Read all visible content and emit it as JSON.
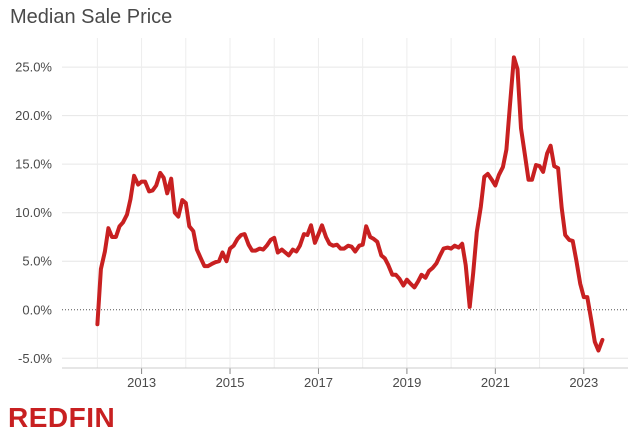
{
  "brand": {
    "logo_text": "REDFIN",
    "color": "#c82021"
  },
  "chart_data": {
    "type": "line",
    "title": "Median Sale Price",
    "xlabel": "",
    "ylabel": "",
    "x_ticks": [
      2013,
      2015,
      2017,
      2019,
      2021,
      2023
    ],
    "y_ticks": [
      -5,
      0,
      5,
      10,
      15,
      20,
      25
    ],
    "y_tick_labels": [
      "-5.0%",
      "0.0%",
      "5.0%",
      "10.0%",
      "15.0%",
      "20.0%",
      "25.0%"
    ],
    "xlim": [
      2011.2,
      2024.0
    ],
    "ylim": [
      -6.0,
      28.0
    ],
    "grid": true,
    "zero_line": "dotted",
    "line_color": "#c82021",
    "series": [
      {
        "values": [
          [
            2012.0,
            -1.5
          ],
          [
            2012.08,
            4.2
          ],
          [
            2012.17,
            6.0
          ],
          [
            2012.25,
            8.4
          ],
          [
            2012.33,
            7.5
          ],
          [
            2012.42,
            7.5
          ],
          [
            2012.5,
            8.6
          ],
          [
            2012.58,
            9.0
          ],
          [
            2012.67,
            9.8
          ],
          [
            2012.75,
            11.4
          ],
          [
            2012.83,
            13.8
          ],
          [
            2012.92,
            12.9
          ],
          [
            2013.0,
            13.2
          ],
          [
            2013.08,
            13.2
          ],
          [
            2013.17,
            12.2
          ],
          [
            2013.25,
            12.3
          ],
          [
            2013.33,
            12.8
          ],
          [
            2013.42,
            14.1
          ],
          [
            2013.5,
            13.6
          ],
          [
            2013.58,
            12.0
          ],
          [
            2013.67,
            13.5
          ],
          [
            2013.75,
            10.0
          ],
          [
            2013.83,
            9.6
          ],
          [
            2013.92,
            11.3
          ],
          [
            2014.0,
            11.0
          ],
          [
            2014.08,
            8.6
          ],
          [
            2014.17,
            8.1
          ],
          [
            2014.25,
            6.2
          ],
          [
            2014.33,
            5.4
          ],
          [
            2014.42,
            4.5
          ],
          [
            2014.5,
            4.5
          ],
          [
            2014.58,
            4.7
          ],
          [
            2014.67,
            4.9
          ],
          [
            2014.75,
            5.0
          ],
          [
            2014.83,
            5.9
          ],
          [
            2014.92,
            5.0
          ],
          [
            2015.0,
            6.3
          ],
          [
            2015.08,
            6.6
          ],
          [
            2015.17,
            7.3
          ],
          [
            2015.25,
            7.7
          ],
          [
            2015.33,
            7.8
          ],
          [
            2015.42,
            6.7
          ],
          [
            2015.5,
            6.1
          ],
          [
            2015.58,
            6.1
          ],
          [
            2015.67,
            6.3
          ],
          [
            2015.75,
            6.2
          ],
          [
            2015.83,
            6.6
          ],
          [
            2015.92,
            7.2
          ],
          [
            2016.0,
            7.4
          ],
          [
            2016.08,
            5.9
          ],
          [
            2016.17,
            6.2
          ],
          [
            2016.25,
            5.9
          ],
          [
            2016.33,
            5.6
          ],
          [
            2016.42,
            6.2
          ],
          [
            2016.5,
            6.0
          ],
          [
            2016.58,
            6.6
          ],
          [
            2016.67,
            7.8
          ],
          [
            2016.75,
            7.7
          ],
          [
            2016.83,
            8.7
          ],
          [
            2016.92,
            6.9
          ],
          [
            2017.0,
            7.8
          ],
          [
            2017.08,
            8.7
          ],
          [
            2017.17,
            7.5
          ],
          [
            2017.25,
            6.8
          ],
          [
            2017.33,
            6.6
          ],
          [
            2017.42,
            6.7
          ],
          [
            2017.5,
            6.3
          ],
          [
            2017.58,
            6.3
          ],
          [
            2017.67,
            6.6
          ],
          [
            2017.75,
            6.5
          ],
          [
            2017.83,
            6.0
          ],
          [
            2017.92,
            6.6
          ],
          [
            2018.0,
            6.7
          ],
          [
            2018.08,
            8.6
          ],
          [
            2018.17,
            7.5
          ],
          [
            2018.25,
            7.3
          ],
          [
            2018.33,
            7.0
          ],
          [
            2018.42,
            5.6
          ],
          [
            2018.5,
            5.3
          ],
          [
            2018.58,
            4.6
          ],
          [
            2018.67,
            3.6
          ],
          [
            2018.75,
            3.6
          ],
          [
            2018.83,
            3.2
          ],
          [
            2018.92,
            2.5
          ],
          [
            2019.0,
            3.1
          ],
          [
            2019.08,
            2.7
          ],
          [
            2019.17,
            2.3
          ],
          [
            2019.25,
            2.9
          ],
          [
            2019.33,
            3.6
          ],
          [
            2019.42,
            3.3
          ],
          [
            2019.5,
            4.0
          ],
          [
            2019.58,
            4.3
          ],
          [
            2019.67,
            4.8
          ],
          [
            2019.75,
            5.6
          ],
          [
            2019.83,
            6.3
          ],
          [
            2019.92,
            6.4
          ],
          [
            2020.0,
            6.3
          ],
          [
            2020.08,
            6.6
          ],
          [
            2020.17,
            6.4
          ],
          [
            2020.25,
            6.8
          ],
          [
            2020.33,
            4.6
          ],
          [
            2020.42,
            0.3
          ],
          [
            2020.5,
            3.8
          ],
          [
            2020.58,
            8.0
          ],
          [
            2020.67,
            10.6
          ],
          [
            2020.75,
            13.7
          ],
          [
            2020.83,
            14.0
          ],
          [
            2020.92,
            13.4
          ],
          [
            2021.0,
            12.8
          ],
          [
            2021.08,
            13.9
          ],
          [
            2021.17,
            14.7
          ],
          [
            2021.25,
            16.5
          ],
          [
            2021.33,
            21.0
          ],
          [
            2021.42,
            26.0
          ],
          [
            2021.5,
            24.8
          ],
          [
            2021.58,
            18.7
          ],
          [
            2021.67,
            15.9
          ],
          [
            2021.75,
            13.4
          ],
          [
            2021.83,
            13.4
          ],
          [
            2021.92,
            14.9
          ],
          [
            2022.0,
            14.8
          ],
          [
            2022.08,
            14.2
          ],
          [
            2022.17,
            16.1
          ],
          [
            2022.25,
            16.9
          ],
          [
            2022.33,
            14.8
          ],
          [
            2022.42,
            14.6
          ],
          [
            2022.5,
            10.5
          ],
          [
            2022.58,
            7.7
          ],
          [
            2022.67,
            7.2
          ],
          [
            2022.75,
            7.1
          ],
          [
            2022.83,
            5.1
          ],
          [
            2022.92,
            2.7
          ],
          [
            2023.0,
            1.3
          ],
          [
            2023.08,
            1.3
          ],
          [
            2023.17,
            -1.1
          ],
          [
            2023.25,
            -3.3
          ],
          [
            2023.33,
            -4.2
          ],
          [
            2023.42,
            -3.1
          ]
        ]
      }
    ]
  }
}
